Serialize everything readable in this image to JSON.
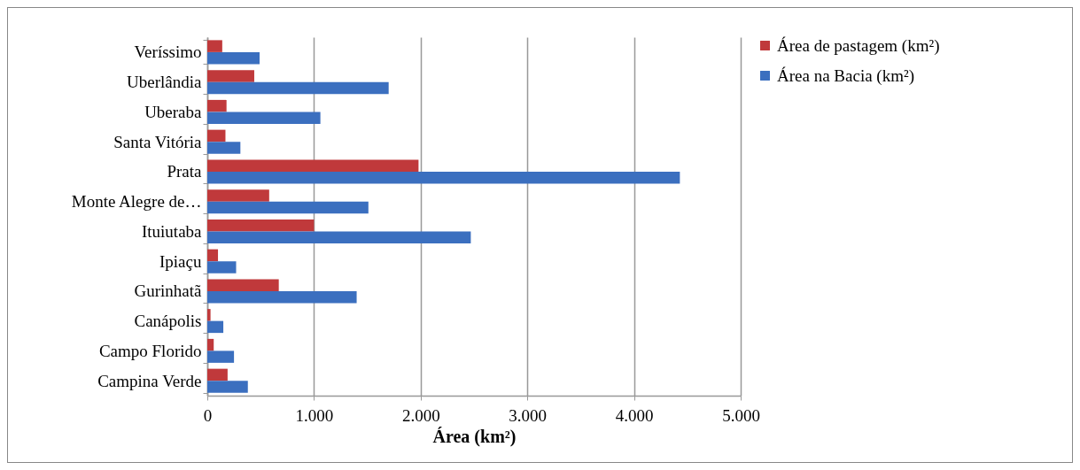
{
  "chart_data": {
    "type": "bar",
    "orientation": "horizontal",
    "xlabel": "Área (km²)",
    "categories": [
      "Veríssimo",
      "Uberlândia",
      "Uberaba",
      "Santa Vitória",
      "Prata",
      "Monte Alegre de…",
      "Ituiutaba",
      "Ipiaçu",
      "Gurinhatã",
      "Canápolis",
      "Campo Florido",
      "Campina Verde"
    ],
    "series": [
      {
        "name": "Área de pastagem (km²)",
        "color": "#c0393b",
        "values": [
          140,
          440,
          180,
          170,
          1980,
          580,
          1000,
          100,
          670,
          30,
          60,
          190
        ]
      },
      {
        "name": "Área na Bacia (km²)",
        "color": "#3b6fbf",
        "values": [
          490,
          1700,
          1060,
          310,
          4430,
          1510,
          2470,
          270,
          1400,
          150,
          250,
          380
        ]
      }
    ],
    "xlim": [
      0,
      5000
    ],
    "xticks": [
      0,
      {
        "value": 1000,
        "label": "1.000"
      },
      {
        "value": 2000,
        "label": "2.000"
      },
      {
        "value": 3000,
        "label": "3.000"
      },
      {
        "value": 4000,
        "label": "4.000"
      },
      {
        "value": 5000,
        "label": "5.000"
      }
    ],
    "grid": "x",
    "legend": "right"
  }
}
